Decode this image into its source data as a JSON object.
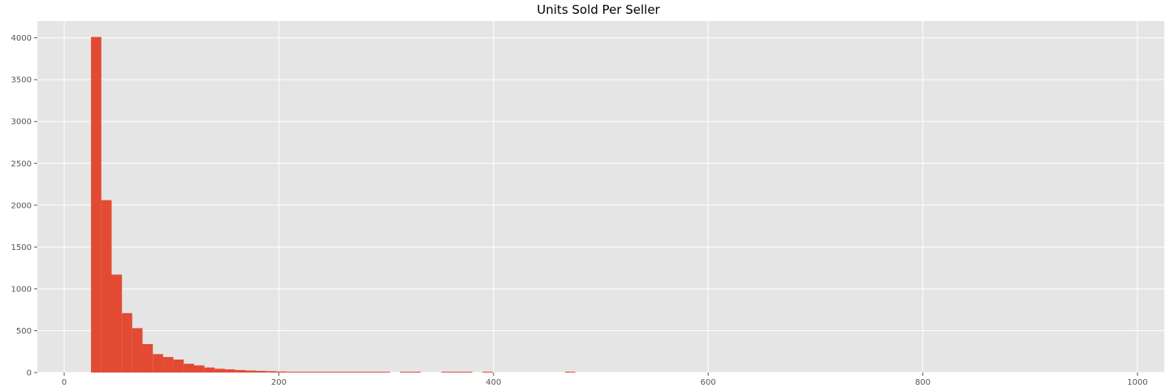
{
  "chart_data": {
    "type": "bar",
    "title": "Units Sold Per Seller",
    "xlabel": "",
    "ylabel": "",
    "xlim": [
      -25,
      1025
    ],
    "ylim": [
      0,
      4200
    ],
    "xticks": [
      0,
      200,
      400,
      600,
      800,
      1000
    ],
    "yticks": [
      0,
      500,
      1000,
      1500,
      2000,
      2500,
      3000,
      3500,
      4000
    ],
    "grid": true,
    "bar_color": "#e24a33",
    "background_color": "#e5e5e5",
    "grid_color": "#ffffff",
    "bin_width": 9.6,
    "bins": [
      {
        "x": 25,
        "count": 4010
      },
      {
        "x": 34.6,
        "count": 2060
      },
      {
        "x": 44.2,
        "count": 1170
      },
      {
        "x": 53.8,
        "count": 710
      },
      {
        "x": 63.4,
        "count": 530
      },
      {
        "x": 73,
        "count": 340
      },
      {
        "x": 82.6,
        "count": 220
      },
      {
        "x": 92.2,
        "count": 185
      },
      {
        "x": 101.8,
        "count": 155
      },
      {
        "x": 111.4,
        "count": 105
      },
      {
        "x": 121,
        "count": 85
      },
      {
        "x": 130.6,
        "count": 60
      },
      {
        "x": 140.2,
        "count": 45
      },
      {
        "x": 149.8,
        "count": 38
      },
      {
        "x": 159.4,
        "count": 30
      },
      {
        "x": 169,
        "count": 24
      },
      {
        "x": 178.6,
        "count": 20
      },
      {
        "x": 188.2,
        "count": 16
      },
      {
        "x": 197.8,
        "count": 12
      },
      {
        "x": 207.4,
        "count": 9
      },
      {
        "x": 217,
        "count": 8
      },
      {
        "x": 226.6,
        "count": 7
      },
      {
        "x": 236.2,
        "count": 6
      },
      {
        "x": 245.8,
        "count": 6
      },
      {
        "x": 255.4,
        "count": 5
      },
      {
        "x": 265,
        "count": 5
      },
      {
        "x": 274.6,
        "count": 4
      },
      {
        "x": 284.2,
        "count": 4
      },
      {
        "x": 293.8,
        "count": 3
      },
      {
        "x": 313,
        "count": 3
      },
      {
        "x": 322.6,
        "count": 3
      },
      {
        "x": 351.4,
        "count": 2
      },
      {
        "x": 361,
        "count": 2
      },
      {
        "x": 370.6,
        "count": 2
      },
      {
        "x": 389.8,
        "count": 2
      },
      {
        "x": 466.6,
        "count": 2
      }
    ]
  }
}
